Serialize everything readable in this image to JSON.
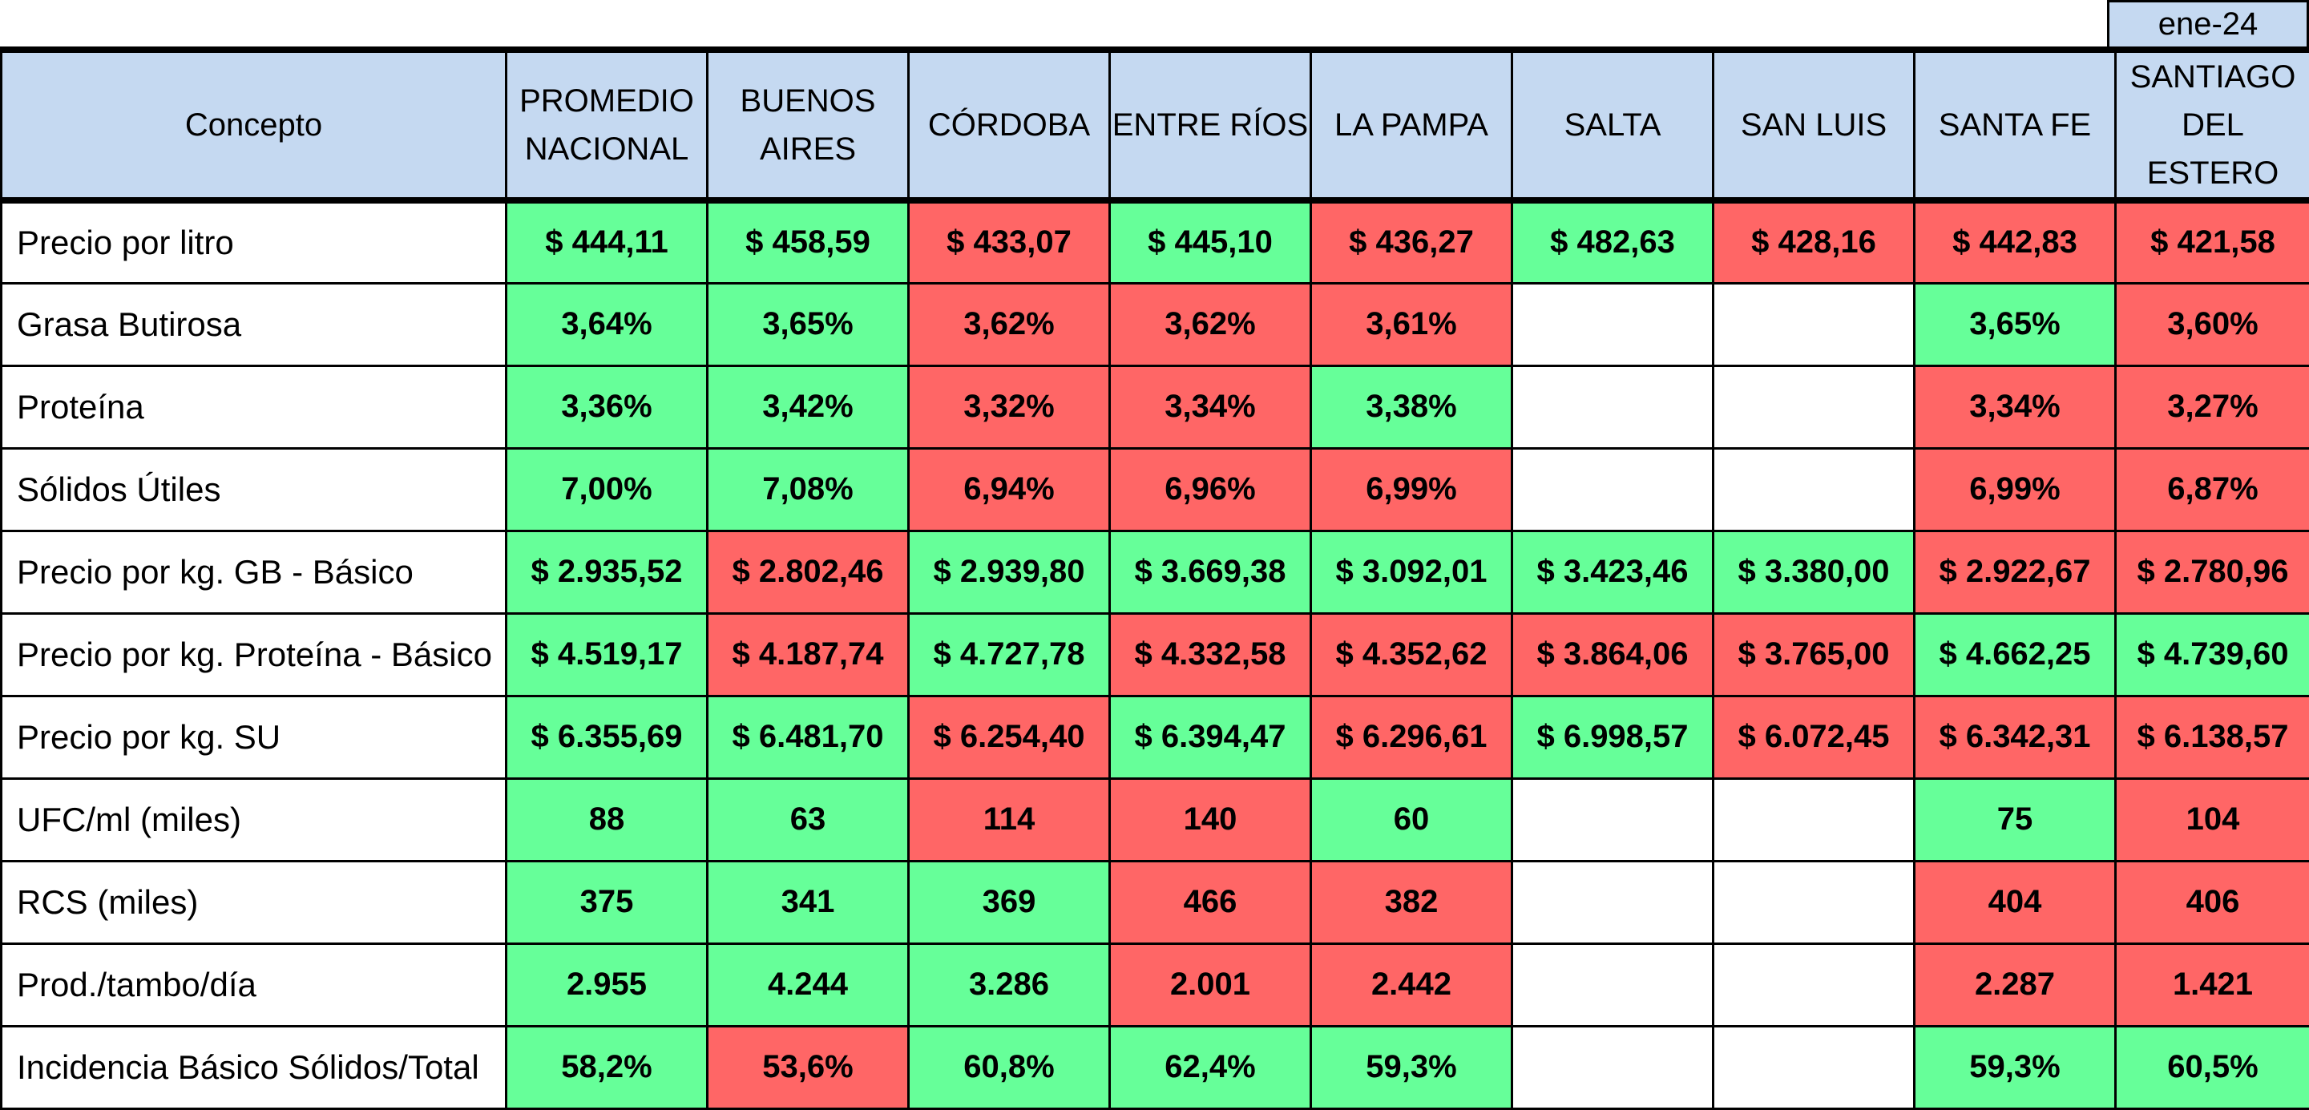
{
  "period": "ene-24",
  "header": {
    "concept": "Concepto",
    "columns": [
      [
        "PROMEDIO",
        "NACIONAL"
      ],
      [
        "BUENOS",
        "AIRES"
      ],
      [
        "CÓRDOBA"
      ],
      [
        "ENTRE RÍOS"
      ],
      [
        "LA PAMPA"
      ],
      [
        "SALTA"
      ],
      [
        "SAN LUIS"
      ],
      [
        "SANTA FE"
      ],
      [
        "SANTIAGO",
        "DEL ESTERO"
      ]
    ]
  },
  "colors": {
    "good": "#66ff99",
    "bad": "#ff6666",
    "header": "#c5d9f1",
    "none": "#ffffff"
  },
  "rows": [
    {
      "label": "Precio por litro",
      "values": [
        "$ 444,11",
        "$ 458,59",
        "$ 433,07",
        "$ 445,10",
        "$ 436,27",
        "$ 482,63",
        "$ 428,16",
        "$ 442,83",
        "$ 421,58"
      ],
      "status": [
        "g",
        "g",
        "r",
        "g",
        "r",
        "g",
        "r",
        "r",
        "r"
      ]
    },
    {
      "label": "Grasa Butirosa",
      "values": [
        "3,64%",
        "3,65%",
        "3,62%",
        "3,62%",
        "3,61%",
        "",
        "",
        "3,65%",
        "3,60%"
      ],
      "status": [
        "g",
        "g",
        "r",
        "r",
        "r",
        "w",
        "w",
        "g",
        "r"
      ]
    },
    {
      "label": "Proteína",
      "values": [
        "3,36%",
        "3,42%",
        "3,32%",
        "3,34%",
        "3,38%",
        "",
        "",
        "3,34%",
        "3,27%"
      ],
      "status": [
        "g",
        "g",
        "r",
        "r",
        "g",
        "w",
        "w",
        "r",
        "r"
      ]
    },
    {
      "label": "Sólidos Útiles",
      "values": [
        "7,00%",
        "7,08%",
        "6,94%",
        "6,96%",
        "6,99%",
        "",
        "",
        "6,99%",
        "6,87%"
      ],
      "status": [
        "g",
        "g",
        "r",
        "r",
        "r",
        "w",
        "w",
        "r",
        "r"
      ]
    },
    {
      "label": "Precio por kg. GB - Básico",
      "values": [
        "$ 2.935,52",
        "$ 2.802,46",
        "$ 2.939,80",
        "$ 3.669,38",
        "$ 3.092,01",
        "$ 3.423,46",
        "$ 3.380,00",
        "$ 2.922,67",
        "$ 2.780,96"
      ],
      "status": [
        "g",
        "r",
        "g",
        "g",
        "g",
        "g",
        "g",
        "r",
        "r"
      ]
    },
    {
      "label": "Precio por kg. Proteína - Básico",
      "values": [
        "$ 4.519,17",
        "$ 4.187,74",
        "$ 4.727,78",
        "$ 4.332,58",
        "$ 4.352,62",
        "$ 3.864,06",
        "$ 3.765,00",
        "$ 4.662,25",
        "$ 4.739,60"
      ],
      "status": [
        "g",
        "r",
        "g",
        "r",
        "r",
        "r",
        "r",
        "g",
        "g"
      ]
    },
    {
      "label": "Precio por kg. SU",
      "values": [
        "$ 6.355,69",
        "$ 6.481,70",
        "$ 6.254,40",
        "$ 6.394,47",
        "$ 6.296,61",
        "$ 6.998,57",
        "$ 6.072,45",
        "$ 6.342,31",
        "$ 6.138,57"
      ],
      "status": [
        "g",
        "g",
        "r",
        "g",
        "r",
        "g",
        "r",
        "r",
        "r"
      ]
    },
    {
      "label": "UFC/ml (miles)",
      "values": [
        "88",
        "63",
        "114",
        "140",
        "60",
        "",
        "",
        "75",
        "104"
      ],
      "status": [
        "g",
        "g",
        "r",
        "r",
        "g",
        "w",
        "w",
        "g",
        "r"
      ]
    },
    {
      "label": "RCS (miles)",
      "values": [
        "375",
        "341",
        "369",
        "466",
        "382",
        "",
        "",
        "404",
        "406"
      ],
      "status": [
        "g",
        "g",
        "g",
        "r",
        "r",
        "w",
        "w",
        "r",
        "r"
      ]
    },
    {
      "label": "Prod./tambo/día",
      "values": [
        "2.955",
        "4.244",
        "3.286",
        "2.001",
        "2.442",
        "",
        "",
        "2.287",
        "1.421"
      ],
      "status": [
        "g",
        "g",
        "g",
        "r",
        "r",
        "w",
        "w",
        "r",
        "r"
      ]
    },
    {
      "label": "Incidencia Básico Sólidos/Total",
      "values": [
        "58,2%",
        "53,6%",
        "60,8%",
        "62,4%",
        "59,3%",
        "",
        "",
        "59,3%",
        "60,5%"
      ],
      "status": [
        "g",
        "r",
        "g",
        "g",
        "g",
        "w",
        "w",
        "g",
        "g"
      ]
    }
  ]
}
